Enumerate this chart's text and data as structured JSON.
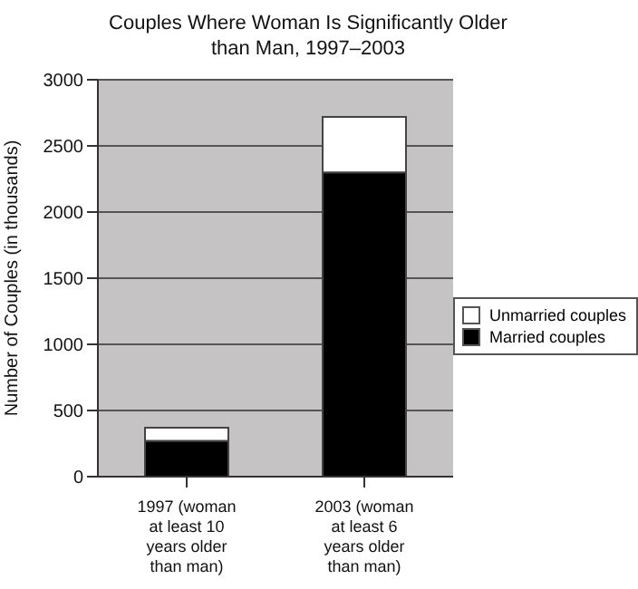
{
  "chart_data": {
    "type": "bar",
    "title": "Couples Where Woman Is Significantly Older than Man, 1997–2003",
    "categories": [
      "1997 (woman at least 10 years older than man)",
      "2003 (woman at least 6 years older than man)"
    ],
    "ylabel": "Number of Couples (in thousands)",
    "series": [
      {
        "name": "Married couples",
        "color": "#000000",
        "values": [
          270,
          2300
        ]
      },
      {
        "name": "Unmarried couples",
        "color": "#ffffff",
        "values": [
          100,
          420
        ]
      }
    ],
    "stacked": true,
    "ylim": [
      0,
      3000
    ],
    "yticks": [
      0,
      500,
      1000,
      1500,
      2000,
      2500,
      3000
    ],
    "grid": "y",
    "legend": "right"
  }
}
